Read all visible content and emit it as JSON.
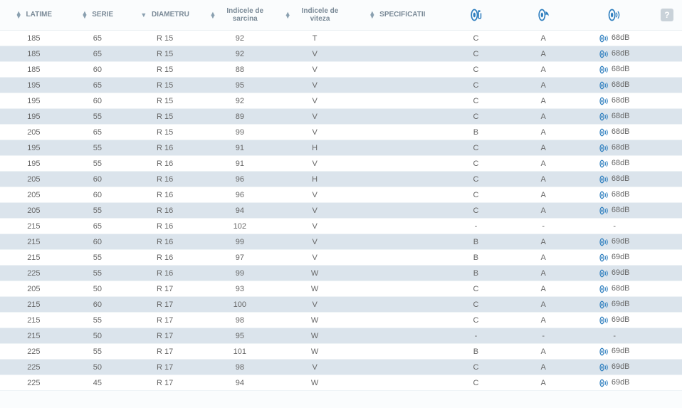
{
  "columns": {
    "latime": {
      "label": "LATIME"
    },
    "serie": {
      "label": "SERIE"
    },
    "diametru": {
      "label": "DIAMETRU"
    },
    "sarcina": {
      "label": "Indicele de sarcina"
    },
    "viteza": {
      "label": "Indicele de viteza"
    },
    "spec": {
      "label": "SPECIFICATII"
    },
    "fuel": {
      "icon": "tire-fuel"
    },
    "wet": {
      "icon": "tire-wet"
    },
    "noise": {
      "icon": "tire-noise"
    },
    "help": {
      "label": "?"
    }
  },
  "colors": {
    "icon_blue": "#2f7fbf",
    "header_text": "#7a8a97",
    "row_even_bg": "#dbe4ec",
    "row_odd_bg": "#ffffff",
    "body_text": "#666666",
    "help_bg": "#c9d2d9"
  },
  "sorted_column": "diametru",
  "rows": [
    {
      "latime": "185",
      "serie": "65",
      "diametru": "R 15",
      "sarcina": "92",
      "viteza": "T",
      "spec": "",
      "fuel": "C",
      "wet": "A",
      "noise": "68dB"
    },
    {
      "latime": "185",
      "serie": "65",
      "diametru": "R 15",
      "sarcina": "92",
      "viteza": "V",
      "spec": "",
      "fuel": "C",
      "wet": "A",
      "noise": "68dB"
    },
    {
      "latime": "185",
      "serie": "60",
      "diametru": "R 15",
      "sarcina": "88",
      "viteza": "V",
      "spec": "",
      "fuel": "C",
      "wet": "A",
      "noise": "68dB"
    },
    {
      "latime": "195",
      "serie": "65",
      "diametru": "R 15",
      "sarcina": "95",
      "viteza": "V",
      "spec": "",
      "fuel": "C",
      "wet": "A",
      "noise": "68dB"
    },
    {
      "latime": "195",
      "serie": "60",
      "diametru": "R 15",
      "sarcina": "92",
      "viteza": "V",
      "spec": "",
      "fuel": "C",
      "wet": "A",
      "noise": "68dB"
    },
    {
      "latime": "195",
      "serie": "55",
      "diametru": "R 15",
      "sarcina": "89",
      "viteza": "V",
      "spec": "",
      "fuel": "C",
      "wet": "A",
      "noise": "68dB"
    },
    {
      "latime": "205",
      "serie": "65",
      "diametru": "R 15",
      "sarcina": "99",
      "viteza": "V",
      "spec": "",
      "fuel": "B",
      "wet": "A",
      "noise": "68dB"
    },
    {
      "latime": "195",
      "serie": "55",
      "diametru": "R 16",
      "sarcina": "91",
      "viteza": "H",
      "spec": "",
      "fuel": "C",
      "wet": "A",
      "noise": "68dB"
    },
    {
      "latime": "195",
      "serie": "55",
      "diametru": "R 16",
      "sarcina": "91",
      "viteza": "V",
      "spec": "",
      "fuel": "C",
      "wet": "A",
      "noise": "68dB"
    },
    {
      "latime": "205",
      "serie": "60",
      "diametru": "R 16",
      "sarcina": "96",
      "viteza": "H",
      "spec": "",
      "fuel": "C",
      "wet": "A",
      "noise": "68dB"
    },
    {
      "latime": "205",
      "serie": "60",
      "diametru": "R 16",
      "sarcina": "96",
      "viteza": "V",
      "spec": "",
      "fuel": "C",
      "wet": "A",
      "noise": "68dB"
    },
    {
      "latime": "205",
      "serie": "55",
      "diametru": "R 16",
      "sarcina": "94",
      "viteza": "V",
      "spec": "",
      "fuel": "C",
      "wet": "A",
      "noise": "68dB"
    },
    {
      "latime": "215",
      "serie": "65",
      "diametru": "R 16",
      "sarcina": "102",
      "viteza": "V",
      "spec": "",
      "fuel": "-",
      "wet": "-",
      "noise": "-"
    },
    {
      "latime": "215",
      "serie": "60",
      "diametru": "R 16",
      "sarcina": "99",
      "viteza": "V",
      "spec": "",
      "fuel": "B",
      "wet": "A",
      "noise": "69dB"
    },
    {
      "latime": "215",
      "serie": "55",
      "diametru": "R 16",
      "sarcina": "97",
      "viteza": "V",
      "spec": "",
      "fuel": "B",
      "wet": "A",
      "noise": "69dB"
    },
    {
      "latime": "225",
      "serie": "55",
      "diametru": "R 16",
      "sarcina": "99",
      "viteza": "W",
      "spec": "",
      "fuel": "B",
      "wet": "A",
      "noise": "69dB"
    },
    {
      "latime": "205",
      "serie": "50",
      "diametru": "R 17",
      "sarcina": "93",
      "viteza": "W",
      "spec": "",
      "fuel": "C",
      "wet": "A",
      "noise": "68dB"
    },
    {
      "latime": "215",
      "serie": "60",
      "diametru": "R 17",
      "sarcina": "100",
      "viteza": "V",
      "spec": "",
      "fuel": "C",
      "wet": "A",
      "noise": "69dB"
    },
    {
      "latime": "215",
      "serie": "55",
      "diametru": "R 17",
      "sarcina": "98",
      "viteza": "W",
      "spec": "",
      "fuel": "C",
      "wet": "A",
      "noise": "69dB"
    },
    {
      "latime": "215",
      "serie": "50",
      "diametru": "R 17",
      "sarcina": "95",
      "viteza": "W",
      "spec": "",
      "fuel": "-",
      "wet": "-",
      "noise": "-"
    },
    {
      "latime": "225",
      "serie": "55",
      "diametru": "R 17",
      "sarcina": "101",
      "viteza": "W",
      "spec": "",
      "fuel": "B",
      "wet": "A",
      "noise": "69dB"
    },
    {
      "latime": "225",
      "serie": "50",
      "diametru": "R 17",
      "sarcina": "98",
      "viteza": "V",
      "spec": "",
      "fuel": "C",
      "wet": "A",
      "noise": "69dB"
    },
    {
      "latime": "225",
      "serie": "45",
      "diametru": "R 17",
      "sarcina": "94",
      "viteza": "W",
      "spec": "",
      "fuel": "C",
      "wet": "A",
      "noise": "69dB"
    }
  ]
}
